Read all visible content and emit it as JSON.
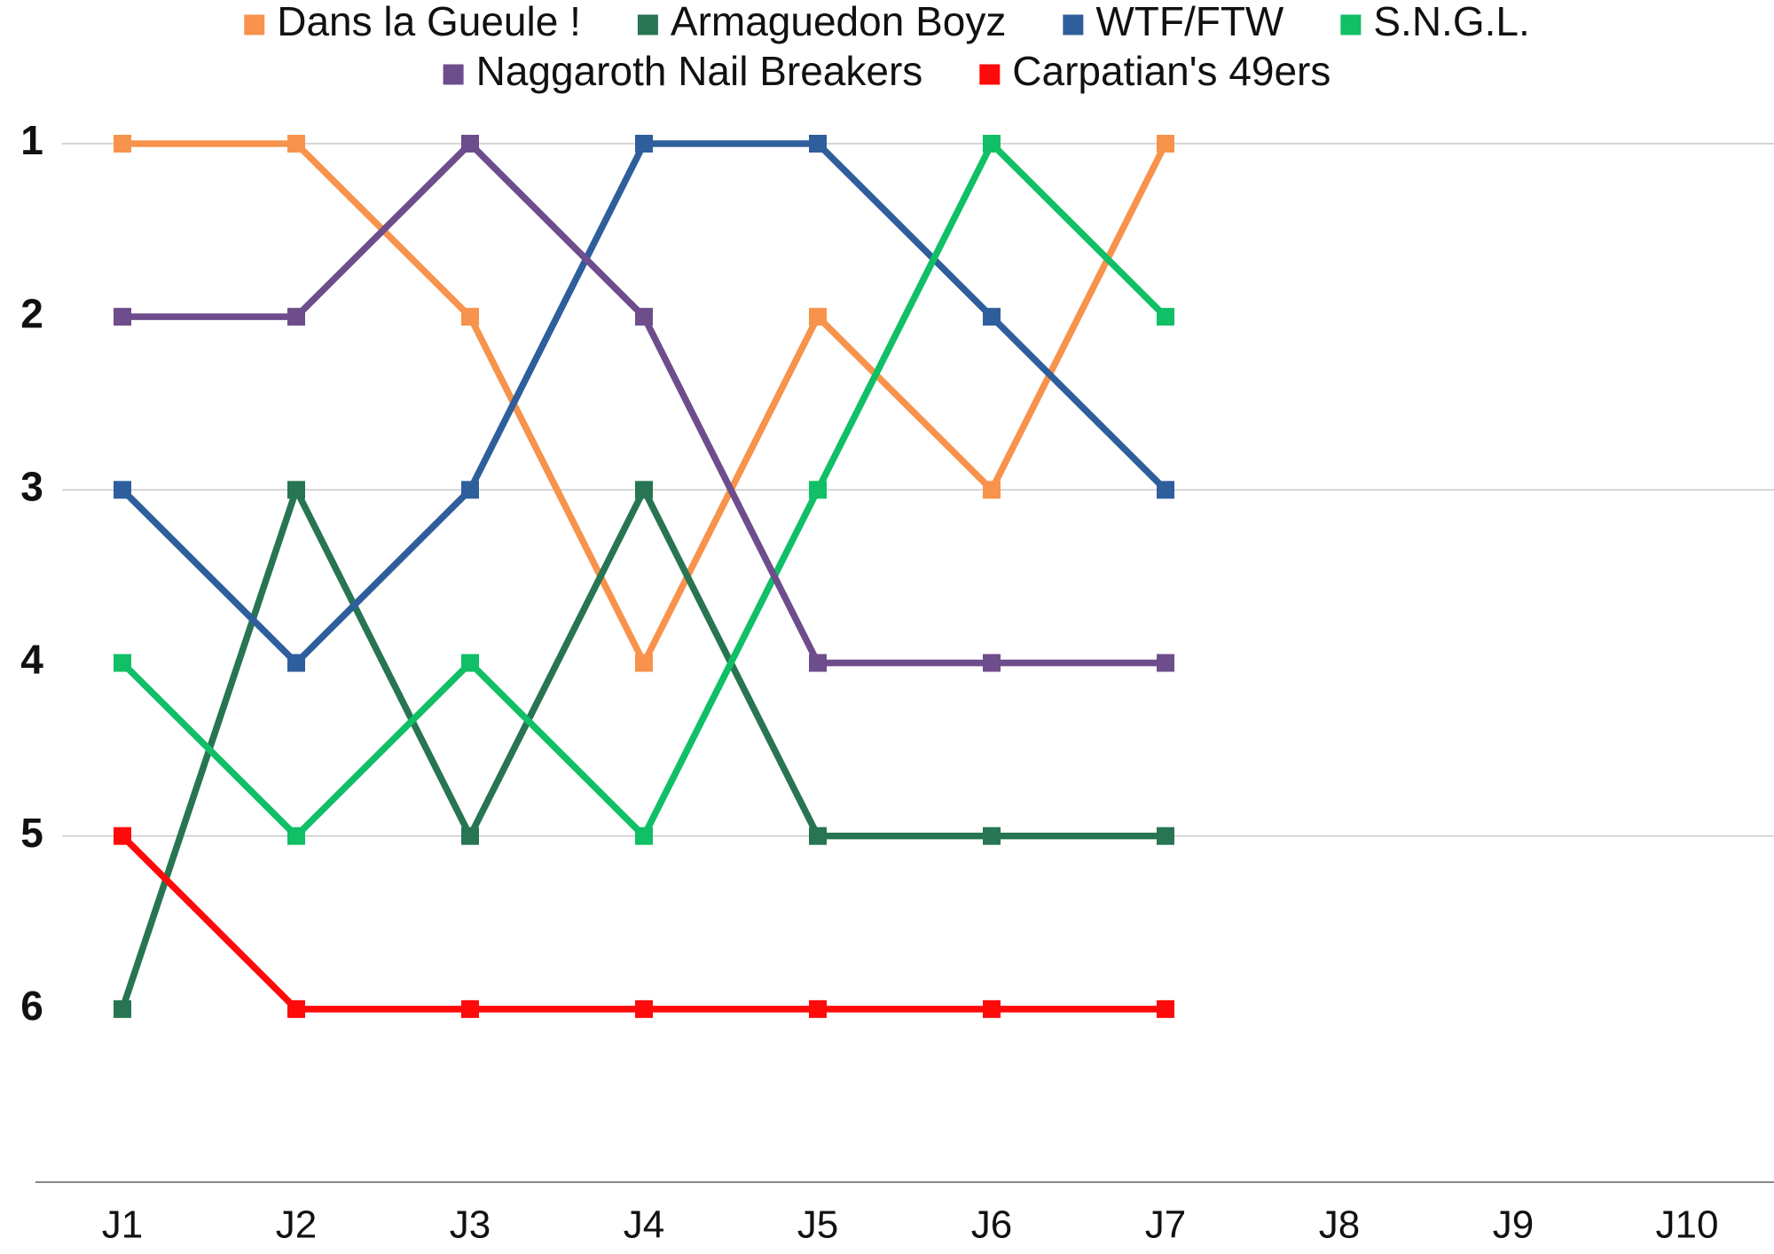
{
  "chart_data": {
    "type": "line",
    "categories": [
      "J1",
      "J2",
      "J3",
      "J4",
      "J5",
      "J6",
      "J7",
      "J8",
      "J9",
      "J10"
    ],
    "series": [
      {
        "name": "Dans la Gueule !",
        "color": "#f7934c",
        "values": [
          1,
          1,
          2,
          4,
          2,
          3,
          1,
          null,
          null,
          null
        ]
      },
      {
        "name": "Armaguedon Boyz",
        "color": "#277552",
        "values": [
          6,
          3,
          5,
          3,
          5,
          5,
          5,
          null,
          null,
          null
        ]
      },
      {
        "name": "WTF/FTW",
        "color": "#2f5e9c",
        "values": [
          3,
          4,
          3,
          1,
          1,
          2,
          3,
          null,
          null,
          null
        ]
      },
      {
        "name": "S.N.G.L.",
        "color": "#10bf66",
        "values": [
          4,
          5,
          4,
          5,
          3,
          1,
          2,
          null,
          null,
          null
        ]
      },
      {
        "name": "Naggaroth Nail Breakers",
        "color": "#6e4d8c",
        "values": [
          2,
          2,
          1,
          2,
          4,
          4,
          4,
          null,
          null,
          null
        ]
      },
      {
        "name": "Carpatian's 49ers",
        "color": "#ff0a0a",
        "values": [
          5,
          6,
          6,
          6,
          6,
          6,
          6,
          null,
          null,
          null
        ]
      }
    ],
    "ylim": [
      1,
      7
    ],
    "y_reversed": true,
    "yticks": [
      1,
      2,
      3,
      4,
      5,
      6
    ],
    "grid_lines": [
      1,
      3,
      5
    ],
    "legend": "top"
  }
}
